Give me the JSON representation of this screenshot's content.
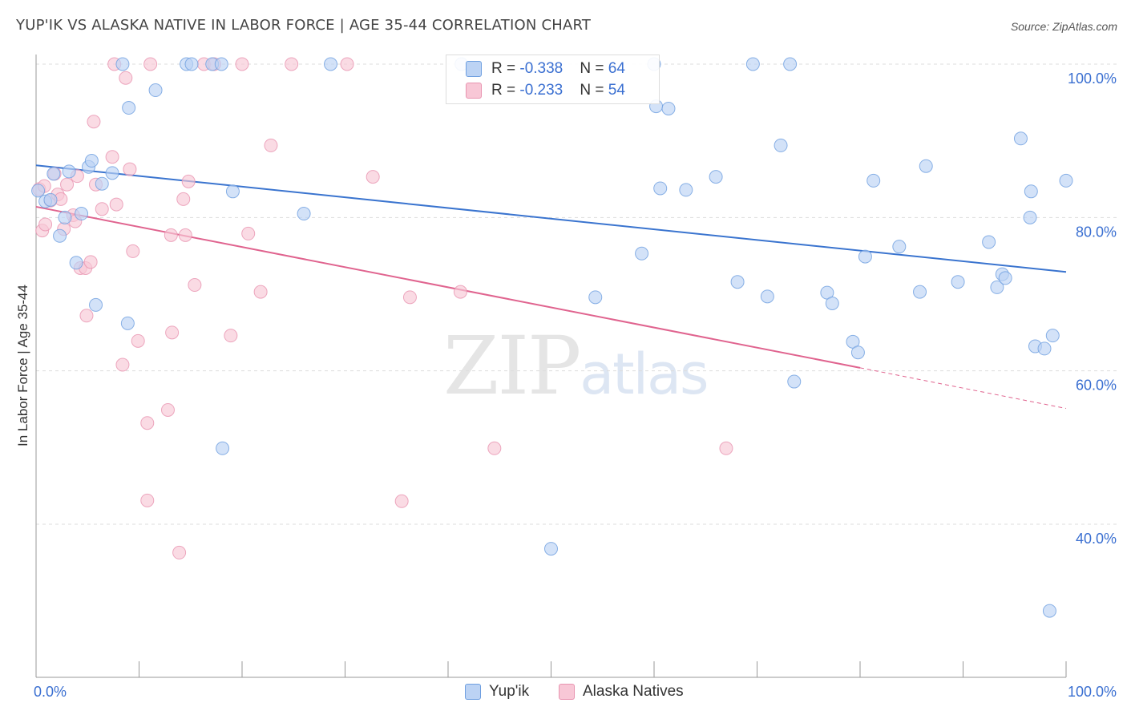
{
  "title": "YUP'IK VS ALASKA NATIVE IN LABOR FORCE | AGE 35-44 CORRELATION CHART",
  "source": "Source: ZipAtlas.com",
  "watermark": {
    "zip": "ZIP",
    "atlas": "atlas"
  },
  "legend_box": {
    "yupik": {
      "r_label": "R = ",
      "r_value": "-0.338",
      "n_label": "N = ",
      "n_value": "64"
    },
    "alaska": {
      "r_label": "R = ",
      "r_value": "-0.233",
      "n_label": "N = ",
      "n_value": "54"
    }
  },
  "colors": {
    "yupik_fill": "#bcd3f4",
    "yupik_stroke": "#6e9fe0",
    "yupik_line": "#3a74cf",
    "alaska_fill": "#f8c7d6",
    "alaska_stroke": "#e894b0",
    "alaska_line": "#e0648f",
    "tick_label": "#3a6fd1",
    "grid": "#dddddd"
  },
  "chart_data": {
    "type": "scatter",
    "title": "YUP'IK VS ALASKA NATIVE IN LABOR FORCE | AGE 35-44 CORRELATION CHART",
    "xlabel": "",
    "ylabel": "In Labor Force | Age 35-44",
    "xlim": [
      0,
      100
    ],
    "ylim": [
      17,
      101
    ],
    "x_tick_labels": [
      "0.0%",
      "100.0%"
    ],
    "y_ticks": [
      40,
      60,
      80,
      100
    ],
    "y_tick_labels": [
      "40.0%",
      "60.0%",
      "80.0%",
      "100.0%"
    ],
    "grid": true,
    "legend_position": "bottom",
    "series": [
      {
        "name": "Yup'ik",
        "trend": {
          "x": [
            0,
            100
          ],
          "y": [
            86.8,
            72.9
          ]
        },
        "points": [
          {
            "x": 0.2,
            "y": 83.5
          },
          {
            "x": 0.9,
            "y": 82.1
          },
          {
            "x": 1.4,
            "y": 82.3
          },
          {
            "x": 1.7,
            "y": 85.7
          },
          {
            "x": 2.3,
            "y": 77.6
          },
          {
            "x": 2.8,
            "y": 80.0
          },
          {
            "x": 3.2,
            "y": 86.0
          },
          {
            "x": 3.9,
            "y": 74.1
          },
          {
            "x": 4.4,
            "y": 80.5
          },
          {
            "x": 5.1,
            "y": 86.6
          },
          {
            "x": 5.4,
            "y": 87.4
          },
          {
            "x": 5.8,
            "y": 68.6
          },
          {
            "x": 6.4,
            "y": 84.4
          },
          {
            "x": 7.4,
            "y": 85.8
          },
          {
            "x": 8.4,
            "y": 100
          },
          {
            "x": 8.9,
            "y": 66.2
          },
          {
            "x": 9.0,
            "y": 94.3
          },
          {
            "x": 11.6,
            "y": 96.6
          },
          {
            "x": 14.6,
            "y": 100
          },
          {
            "x": 15.1,
            "y": 100
          },
          {
            "x": 17.1,
            "y": 100
          },
          {
            "x": 18.0,
            "y": 100
          },
          {
            "x": 18.1,
            "y": 49.9
          },
          {
            "x": 19.1,
            "y": 83.4
          },
          {
            "x": 26.0,
            "y": 80.5
          },
          {
            "x": 28.6,
            "y": 100
          },
          {
            "x": 41.3,
            "y": 100
          },
          {
            "x": 50.0,
            "y": 36.8
          },
          {
            "x": 54.3,
            "y": 69.6
          },
          {
            "x": 58.8,
            "y": 75.3
          },
          {
            "x": 60.0,
            "y": 100
          },
          {
            "x": 60.2,
            "y": 94.5
          },
          {
            "x": 60.6,
            "y": 83.8
          },
          {
            "x": 61.4,
            "y": 94.2
          },
          {
            "x": 63.1,
            "y": 83.6
          },
          {
            "x": 66.0,
            "y": 85.3
          },
          {
            "x": 68.1,
            "y": 71.6
          },
          {
            "x": 69.6,
            "y": 100
          },
          {
            "x": 71.0,
            "y": 69.7
          },
          {
            "x": 72.3,
            "y": 89.4
          },
          {
            "x": 73.2,
            "y": 100
          },
          {
            "x": 73.6,
            "y": 58.6
          },
          {
            "x": 76.8,
            "y": 70.2
          },
          {
            "x": 77.3,
            "y": 68.8
          },
          {
            "x": 79.3,
            "y": 63.8
          },
          {
            "x": 79.8,
            "y": 62.4
          },
          {
            "x": 80.5,
            "y": 74.9
          },
          {
            "x": 81.3,
            "y": 84.8
          },
          {
            "x": 83.8,
            "y": 76.2
          },
          {
            "x": 85.8,
            "y": 70.3
          },
          {
            "x": 86.4,
            "y": 86.7
          },
          {
            "x": 89.5,
            "y": 71.6
          },
          {
            "x": 92.5,
            "y": 76.8
          },
          {
            "x": 93.3,
            "y": 70.9
          },
          {
            "x": 93.8,
            "y": 72.6
          },
          {
            "x": 94.1,
            "y": 72.1
          },
          {
            "x": 95.6,
            "y": 90.3
          },
          {
            "x": 96.5,
            "y": 80.0
          },
          {
            "x": 96.6,
            "y": 83.4
          },
          {
            "x": 97.0,
            "y": 63.2
          },
          {
            "x": 97.9,
            "y": 62.9
          },
          {
            "x": 98.4,
            "y": 28.7
          },
          {
            "x": 98.7,
            "y": 64.6
          },
          {
            "x": 100,
            "y": 84.8
          }
        ]
      },
      {
        "name": "Alaska Natives",
        "trend": {
          "x": [
            0,
            80
          ],
          "y": [
            81.4,
            60.4
          ]
        },
        "trend_dashed": {
          "x": [
            80,
            100
          ],
          "y": [
            60.4,
            55.1
          ]
        },
        "points": [
          {
            "x": 0.3,
            "y": 83.7
          },
          {
            "x": 0.6,
            "y": 78.3
          },
          {
            "x": 0.9,
            "y": 79.1
          },
          {
            "x": 1.4,
            "y": 82.2
          },
          {
            "x": 1.8,
            "y": 85.7
          },
          {
            "x": 2.1,
            "y": 83.0
          },
          {
            "x": 2.4,
            "y": 82.4
          },
          {
            "x": 2.7,
            "y": 78.5
          },
          {
            "x": 3.0,
            "y": 84.3
          },
          {
            "x": 3.6,
            "y": 80.3
          },
          {
            "x": 3.8,
            "y": 79.5
          },
          {
            "x": 4.0,
            "y": 85.4
          },
          {
            "x": 4.3,
            "y": 73.4
          },
          {
            "x": 4.8,
            "y": 73.4
          },
          {
            "x": 4.9,
            "y": 67.2
          },
          {
            "x": 5.3,
            "y": 74.2
          },
          {
            "x": 5.6,
            "y": 92.5
          },
          {
            "x": 5.8,
            "y": 84.3
          },
          {
            "x": 6.4,
            "y": 81.1
          },
          {
            "x": 7.6,
            "y": 100
          },
          {
            "x": 7.4,
            "y": 87.9
          },
          {
            "x": 7.8,
            "y": 81.7
          },
          {
            "x": 8.4,
            "y": 60.8
          },
          {
            "x": 8.7,
            "y": 98.2
          },
          {
            "x": 9.1,
            "y": 86.3
          },
          {
            "x": 9.4,
            "y": 75.6
          },
          {
            "x": 9.9,
            "y": 63.9
          },
          {
            "x": 10.8,
            "y": 53.2
          },
          {
            "x": 10.8,
            "y": 43.1
          },
          {
            "x": 11.1,
            "y": 100
          },
          {
            "x": 12.8,
            "y": 54.9
          },
          {
            "x": 13.1,
            "y": 77.7
          },
          {
            "x": 13.2,
            "y": 65.0
          },
          {
            "x": 13.9,
            "y": 36.3
          },
          {
            "x": 14.3,
            "y": 82.4
          },
          {
            "x": 14.5,
            "y": 77.7
          },
          {
            "x": 14.8,
            "y": 84.7
          },
          {
            "x": 15.4,
            "y": 71.2
          },
          {
            "x": 16.3,
            "y": 100
          },
          {
            "x": 17.3,
            "y": 100
          },
          {
            "x": 18.9,
            "y": 64.6
          },
          {
            "x": 20.0,
            "y": 100
          },
          {
            "x": 20.6,
            "y": 77.9
          },
          {
            "x": 21.8,
            "y": 70.3
          },
          {
            "x": 22.8,
            "y": 89.4
          },
          {
            "x": 24.8,
            "y": 100
          },
          {
            "x": 30.2,
            "y": 100
          },
          {
            "x": 32.7,
            "y": 85.3
          },
          {
            "x": 35.5,
            "y": 43.0
          },
          {
            "x": 36.3,
            "y": 69.6
          },
          {
            "x": 41.2,
            "y": 70.3
          },
          {
            "x": 44.5,
            "y": 49.9
          },
          {
            "x": 67.0,
            "y": 49.9
          },
          {
            "x": 0.8,
            "y": 84.1
          }
        ]
      }
    ]
  },
  "bottom_legend": {
    "yupik": "Yup'ik",
    "alaska": "Alaska Natives"
  }
}
